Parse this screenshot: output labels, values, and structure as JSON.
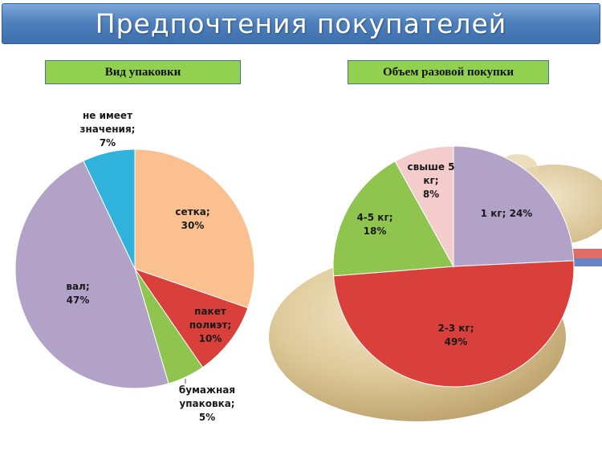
{
  "title": "Предпочтения покупателей",
  "chart_data": [
    {
      "type": "pie",
      "title": "Вид упаковки",
      "slices": [
        {
          "label": [
            "сетка;",
            "30%"
          ],
          "value": 30,
          "color": "#fac090"
        },
        {
          "label": [
            "пакет",
            "полиэт;",
            "10%"
          ],
          "value": 10,
          "color": "#d9403c"
        },
        {
          "label": [
            "бумажная",
            "упаковка;",
            "5%"
          ],
          "value": 5,
          "color": "#8fc44f"
        },
        {
          "label": [
            "вал;",
            "47%"
          ],
          "value": 47,
          "color": "#b3a2c7"
        },
        {
          "label": [
            "не имеет",
            "значения;",
            "7%"
          ],
          "value": 7,
          "color": "#2fb3dc"
        }
      ]
    },
    {
      "type": "pie",
      "title": "Объем разовой покупки",
      "slices": [
        {
          "label": [
            "1 кг; 24%"
          ],
          "value": 24,
          "color": "#b3a2c7"
        },
        {
          "label": [
            "2-3 кг;",
            "49%"
          ],
          "value": 49,
          "color": "#d9403c"
        },
        {
          "label": [
            "4-5 кг;",
            "18%"
          ],
          "value": 18,
          "color": "#8fc44f"
        },
        {
          "label": [
            "свыше 5",
            "кг;",
            "8%"
          ],
          "value": 8,
          "color": "#f5cccc"
        }
      ]
    }
  ]
}
